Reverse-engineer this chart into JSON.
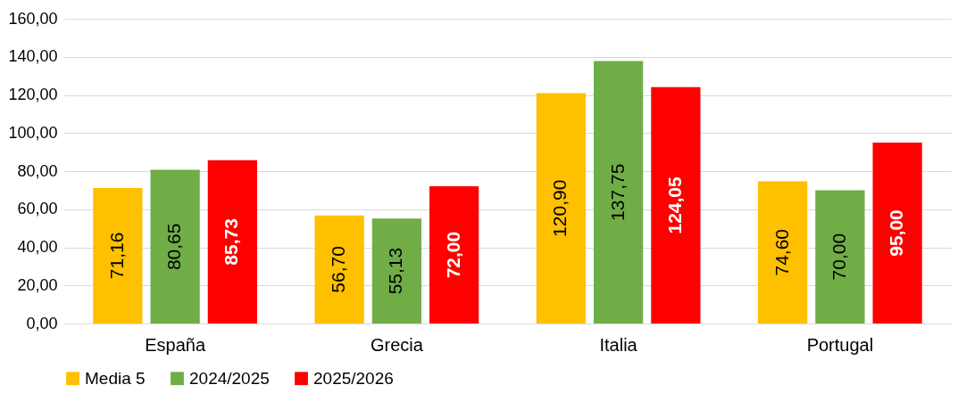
{
  "chart_data": {
    "type": "bar",
    "categories": [
      "España",
      "Grecia",
      "Italia",
      "Portugal"
    ],
    "series": [
      {
        "name": "Media 5",
        "color": "#ffc000",
        "values": [
          71.16,
          56.7,
          120.9,
          74.6
        ],
        "value_labels": [
          "71,16",
          "56,70",
          "120,90",
          "74,60"
        ]
      },
      {
        "name": "2024/2025",
        "color": "#70ad47",
        "values": [
          80.65,
          55.13,
          137.75,
          70.0
        ],
        "value_labels": [
          "80,65",
          "55,13",
          "137,75",
          "70,00"
        ]
      },
      {
        "name": "2025/2026",
        "color": "#ff0000",
        "values": [
          85.73,
          72.0,
          124.05,
          95.0
        ],
        "value_labels": [
          "85,73",
          "72,00",
          "124,05",
          "95,00"
        ]
      }
    ],
    "ylim": [
      0,
      160
    ],
    "yticks": [
      {
        "value": 0,
        "label": "0,00"
      },
      {
        "value": 20,
        "label": "20,00"
      },
      {
        "value": 40,
        "label": "40,00"
      },
      {
        "value": 60,
        "label": "60,00"
      },
      {
        "value": 80,
        "label": "80,00"
      },
      {
        "value": 100,
        "label": "100,00"
      },
      {
        "value": 120,
        "label": "120,00"
      },
      {
        "value": 140,
        "label": "140,00"
      },
      {
        "value": 160,
        "label": "160,00"
      }
    ],
    "grid": "y",
    "legend": "bottom"
  }
}
